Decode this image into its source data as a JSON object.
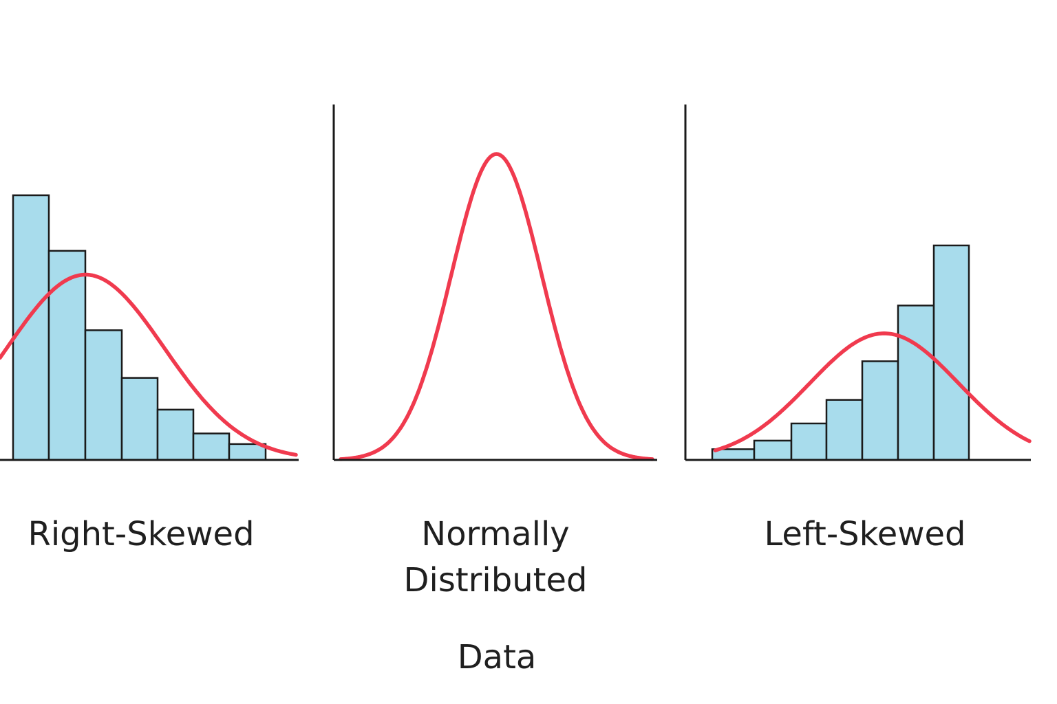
{
  "colors": {
    "bar_fill": "#A8DCEC",
    "bar_stroke": "#1A1A1A",
    "curve": "#F03A4E",
    "axis": "#1A1A1A",
    "text": "#1F1F1F",
    "background": "#FFFFFF"
  },
  "chart_data": [
    {
      "type": "bar",
      "title": "Right-Skewed",
      "grid": false,
      "legend": "none",
      "ylim": [
        0,
        10
      ],
      "bars": [
        {
          "x0": 1,
          "x1": 2,
          "value": 10
        },
        {
          "x0": 2,
          "x1": 3,
          "value": 7.9
        },
        {
          "x0": 3,
          "x1": 4,
          "value": 4.9
        },
        {
          "x0": 4,
          "x1": 5,
          "value": 3.1
        },
        {
          "x0": 5,
          "x1": 6,
          "value": 1.9
        },
        {
          "x0": 6,
          "x1": 7,
          "value": 1
        },
        {
          "x0": 7,
          "x1": 8,
          "value": 0.6
        }
      ],
      "curve": {
        "type": "normal-density-overlay",
        "xlim": [
          0.6,
          8.9
        ],
        "peak_x": 3,
        "peak_y": 7.0,
        "sigma": 2.2
      },
      "caption_lines": [
        "Right-Skewed"
      ]
    },
    {
      "type": "line",
      "title": "Normally Distributed",
      "grid": false,
      "legend": "none",
      "ylim": [
        0,
        10
      ],
      "curve": {
        "type": "normal-density",
        "xlim": [
          -3.8,
          3.8
        ],
        "peak_x": 0,
        "peak_y": 10,
        "sigma": 1.1
      },
      "caption_lines": [
        "Normally",
        "Distributed"
      ]
    },
    {
      "type": "bar",
      "title": "Left-Skewed",
      "grid": false,
      "legend": "none",
      "ylim": [
        0,
        10
      ],
      "bars": [
        {
          "x0": 1,
          "x1": 2,
          "value": 0.5
        },
        {
          "x0": 2,
          "x1": 3,
          "value": 0.9
        },
        {
          "x0": 3,
          "x1": 4,
          "value": 1.7
        },
        {
          "x0": 4,
          "x1": 5,
          "value": 2.8
        },
        {
          "x0": 5,
          "x1": 6,
          "value": 4.6
        },
        {
          "x0": 6,
          "x1": 7,
          "value": 7.2
        },
        {
          "x0": 7,
          "x1": 8,
          "value": 10
        }
      ],
      "curve": {
        "type": "normal-density-overlay",
        "xlim": [
          1,
          10.3
        ],
        "peak_x": 6,
        "peak_y": 5.9,
        "sigma": 2.2
      },
      "caption_lines": [
        "Left-Skewed"
      ]
    }
  ],
  "footer": {
    "label": "Data"
  }
}
